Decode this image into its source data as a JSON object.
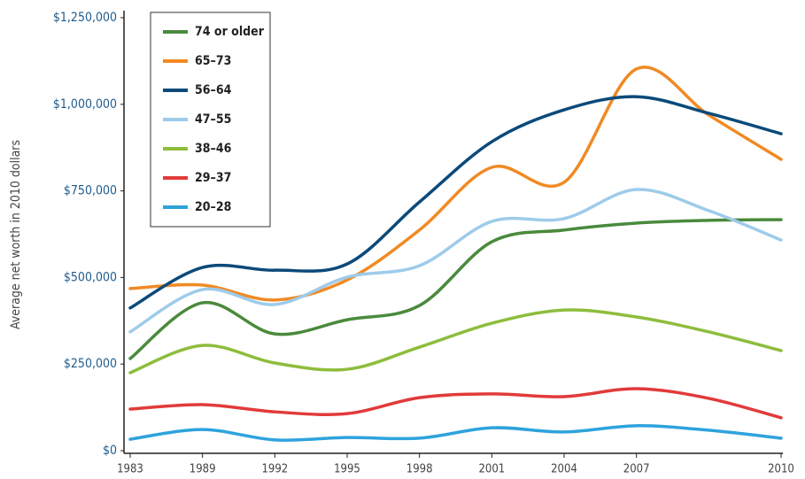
{
  "chart_data": {
    "type": "line",
    "y_label": "Average net worth in 2010 dollars",
    "categories": [
      "1983",
      "1989",
      "1992",
      "1995",
      "1998",
      "2001",
      "2004",
      "2007",
      null,
      "2010"
    ],
    "ylim": [
      0,
      1250000
    ],
    "yticks": [
      {
        "value": 0,
        "label": "$0"
      },
      {
        "value": 250000,
        "label": "$250,000"
      },
      {
        "value": 500000,
        "label": "$500,000"
      },
      {
        "value": 750000,
        "label": "$750,000"
      },
      {
        "value": 1000000,
        "label": "$1,000,000"
      },
      {
        "value": 1250000,
        "label": "$1,250,000"
      }
    ],
    "legend": "upper left",
    "series": [
      {
        "name": "74 or older",
        "color": "#4a8a3c",
        "values": [
          266000,
          427000,
          337000,
          378000,
          419000,
          603000,
          637000,
          657000,
          665000,
          667000
        ]
      },
      {
        "name": "65–73",
        "color": "#f08a24",
        "values": [
          468000,
          478000,
          435000,
          493000,
          637000,
          818000,
          775000,
          1102000,
          969000,
          841000
        ]
      },
      {
        "name": "56–64",
        "color": "#0b4a7a",
        "values": [
          412000,
          529000,
          521000,
          539000,
          718000,
          892000,
          984000,
          1022000,
          974000,
          915000
        ]
      },
      {
        "name": "47–55",
        "color": "#9ecbea",
        "values": [
          343000,
          465000,
          422000,
          501000,
          534000,
          662000,
          670000,
          754000,
          693000,
          608000
        ]
      },
      {
        "name": "38–46",
        "color": "#8dbd3c",
        "values": [
          225000,
          304000,
          253000,
          235000,
          299000,
          368000,
          406000,
          386000,
          343000,
          289000
        ]
      },
      {
        "name": "29–37",
        "color": "#e23a3a",
        "values": [
          120000,
          133000,
          112000,
          107000,
          153000,
          164000,
          156000,
          179000,
          151000,
          95000
        ]
      },
      {
        "name": "20–28",
        "color": "#2ea3dc",
        "values": [
          33000,
          61000,
          31000,
          38000,
          36000,
          66000,
          54000,
          72000,
          59000,
          36000
        ]
      }
    ]
  }
}
